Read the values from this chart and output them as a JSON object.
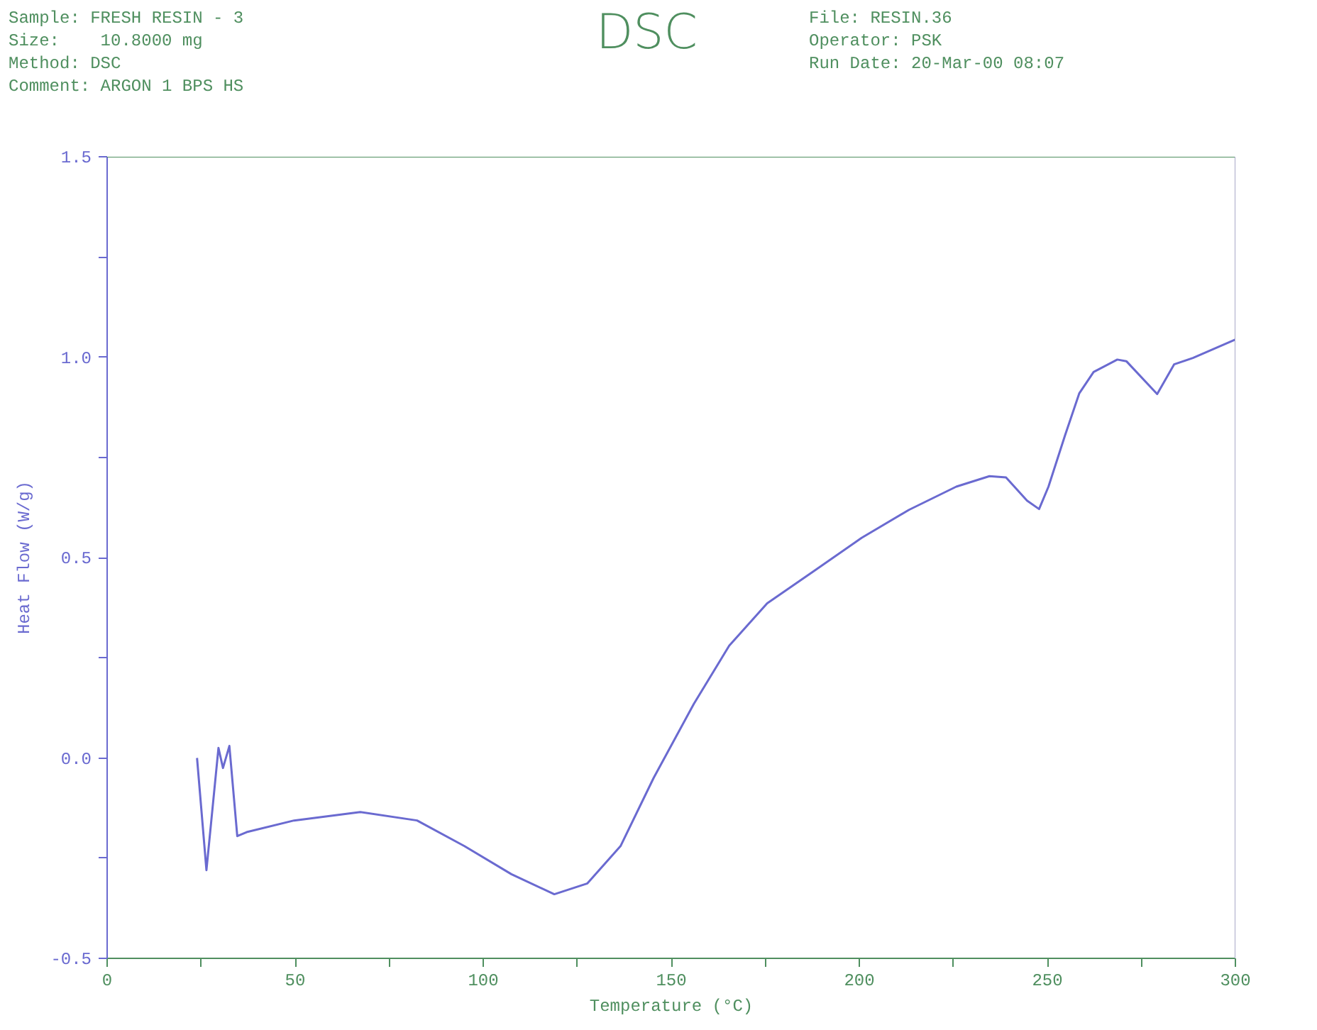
{
  "chart_data": {
    "type": "line",
    "title": "DSC",
    "annotations": [
      "Sample: FRESH RESIN - 3",
      "Size:    10.8000 mg",
      "Method: DSC",
      "Comment: ARGON 1 BPS HS",
      "File: RESIN.36",
      "Operator: PSK",
      "Run Date: 20-Mar-00 08:07"
    ],
    "xlabel": "Temperature (°C)",
    "ylabel": "Heat Flow (W/g)",
    "xlim": [
      0,
      300
    ],
    "ylim": [
      -0.5,
      1.5
    ],
    "xticks": [
      0,
      {
        "value": 25,
        "label": null
      },
      50,
      {
        "value": 75,
        "label": null
      },
      100,
      {
        "value": 125,
        "label": null
      },
      150,
      {
        "value": 175,
        "label": null
      },
      200,
      {
        "value": 225,
        "label": null
      },
      250,
      {
        "value": 275,
        "label": null
      },
      300
    ],
    "yticks": [
      -0.5,
      {
        "value": -0.25,
        "label": null
      },
      {
        "value": 0,
        "label": "0.0"
      },
      {
        "value": 0.25,
        "label": null
      },
      0.5,
      {
        "value": 0.75,
        "label": null
      },
      {
        "value": 1,
        "label": "1.0"
      },
      {
        "value": 1.25,
        "label": null
      },
      1.5
    ],
    "grid": false,
    "marker": "none",
    "line_style": "solid",
    "series": [
      {
        "color": "#6a6ad0",
        "x": [
          23.9,
          26.4,
          29.6,
          30.8,
          32.5,
          34.6,
          37.1,
          49.7,
          67.3,
          82.4,
          95,
          107.5,
          118.9,
          127.7,
          136.5,
          145.3,
          156,
          165.4,
          175.5,
          188,
          200.6,
          213.2,
          225.8,
          234.6,
          239,
          244.6,
          247.8,
          250.3,
          254.7,
          258.5,
          262.3,
          268.6,
          271,
          279.2,
          283.7,
          288.7,
          300
        ],
        "values": [
          0.0,
          -0.28,
          0.025,
          -0.025,
          0.03,
          -0.195,
          -0.185,
          -0.156,
          -0.135,
          -0.156,
          -0.22,
          -0.29,
          -0.34,
          -0.313,
          -0.22,
          -0.05,
          0.135,
          0.28,
          0.386,
          0.467,
          0.549,
          0.619,
          0.677,
          0.703,
          0.7,
          0.642,
          0.621,
          0.677,
          0.805,
          0.91,
          0.963,
          0.994,
          0.99,
          0.908,
          0.982,
          0.998,
          1.044
        ]
      }
    ]
  }
}
